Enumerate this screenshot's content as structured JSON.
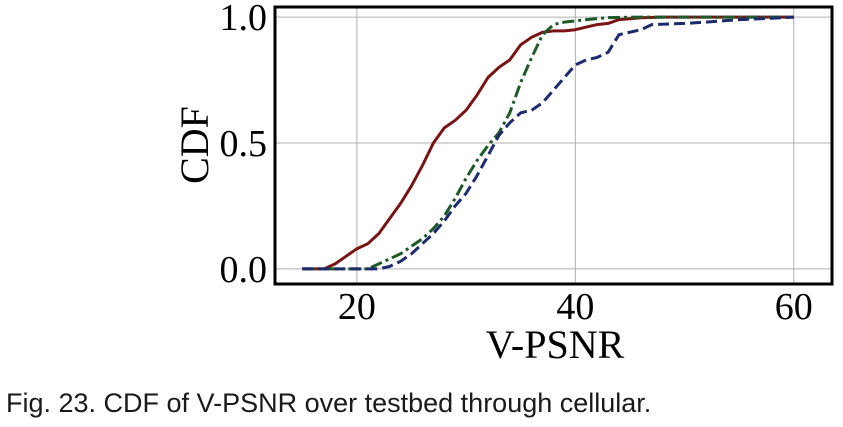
{
  "caption": "Fig. 23. CDF of V-PSNR over testbed through cellular.",
  "chart_data": {
    "type": "line",
    "xlabel": "V-PSNR",
    "ylabel": "CDF",
    "xlim": [
      12.5,
      63.5
    ],
    "ylim": [
      -0.06,
      1.04
    ],
    "xticks": [
      20,
      40,
      60
    ],
    "xtick_labels": [
      "20",
      "40",
      "60"
    ],
    "yticks": [
      0.0,
      0.5,
      1.0
    ],
    "ytick_labels": [
      "0.0",
      "0.5",
      "1.0"
    ],
    "grid": true,
    "series": [
      {
        "color": "#7a1414",
        "dash": "solid",
        "points": [
          [
            15,
            0
          ],
          [
            17,
            0
          ],
          [
            18,
            0.02
          ],
          [
            19,
            0.05
          ],
          [
            20,
            0.08
          ],
          [
            21,
            0.1
          ],
          [
            22,
            0.14
          ],
          [
            23,
            0.2
          ],
          [
            24,
            0.26
          ],
          [
            25,
            0.33
          ],
          [
            26,
            0.41
          ],
          [
            27,
            0.5
          ],
          [
            28,
            0.56
          ],
          [
            29,
            0.59
          ],
          [
            30,
            0.63
          ],
          [
            31,
            0.69
          ],
          [
            32,
            0.76
          ],
          [
            33,
            0.8
          ],
          [
            34,
            0.83
          ],
          [
            35,
            0.89
          ],
          [
            36,
            0.92
          ],
          [
            37,
            0.94
          ],
          [
            38,
            0.945
          ],
          [
            39,
            0.945
          ],
          [
            40,
            0.95
          ],
          [
            41,
            0.96
          ],
          [
            42,
            0.97
          ],
          [
            43,
            0.975
          ],
          [
            44,
            0.99
          ],
          [
            46,
            0.997
          ],
          [
            48,
            1.0
          ],
          [
            60,
            1.0
          ]
        ]
      },
      {
        "color": "#1e5a28",
        "dash": "dashdot",
        "points": [
          [
            15,
            0
          ],
          [
            21,
            0
          ],
          [
            22,
            0.02
          ],
          [
            23,
            0.04
          ],
          [
            24,
            0.06
          ],
          [
            25,
            0.09
          ],
          [
            26,
            0.12
          ],
          [
            27,
            0.16
          ],
          [
            28,
            0.21
          ],
          [
            29,
            0.28
          ],
          [
            30,
            0.36
          ],
          [
            31,
            0.43
          ],
          [
            32,
            0.49
          ],
          [
            33,
            0.54
          ],
          [
            34,
            0.62
          ],
          [
            35,
            0.74
          ],
          [
            36,
            0.84
          ],
          [
            37,
            0.93
          ],
          [
            38,
            0.97
          ],
          [
            39,
            0.98
          ],
          [
            40,
            0.985
          ],
          [
            41,
            0.99
          ],
          [
            43,
            0.998
          ],
          [
            46,
            1.0
          ],
          [
            60,
            1.0
          ]
        ]
      },
      {
        "color": "#1c2a6e",
        "dash": "dashed",
        "points": [
          [
            15,
            0
          ],
          [
            22,
            0
          ],
          [
            23,
            0.01
          ],
          [
            24,
            0.03
          ],
          [
            25,
            0.06
          ],
          [
            26,
            0.1
          ],
          [
            27,
            0.14
          ],
          [
            28,
            0.19
          ],
          [
            29,
            0.25
          ],
          [
            30,
            0.3
          ],
          [
            31,
            0.37
          ],
          [
            32,
            0.45
          ],
          [
            33,
            0.53
          ],
          [
            34,
            0.58
          ],
          [
            35,
            0.62
          ],
          [
            36,
            0.63
          ],
          [
            37,
            0.66
          ],
          [
            38,
            0.71
          ],
          [
            39,
            0.76
          ],
          [
            40,
            0.81
          ],
          [
            41,
            0.83
          ],
          [
            42,
            0.84
          ],
          [
            43,
            0.86
          ],
          [
            44,
            0.93
          ],
          [
            45,
            0.94
          ],
          [
            46,
            0.95
          ],
          [
            47,
            0.97
          ],
          [
            50,
            0.975
          ],
          [
            52,
            0.98
          ],
          [
            55,
            0.99
          ],
          [
            58,
            0.995
          ],
          [
            60,
            1.0
          ]
        ]
      }
    ]
  }
}
